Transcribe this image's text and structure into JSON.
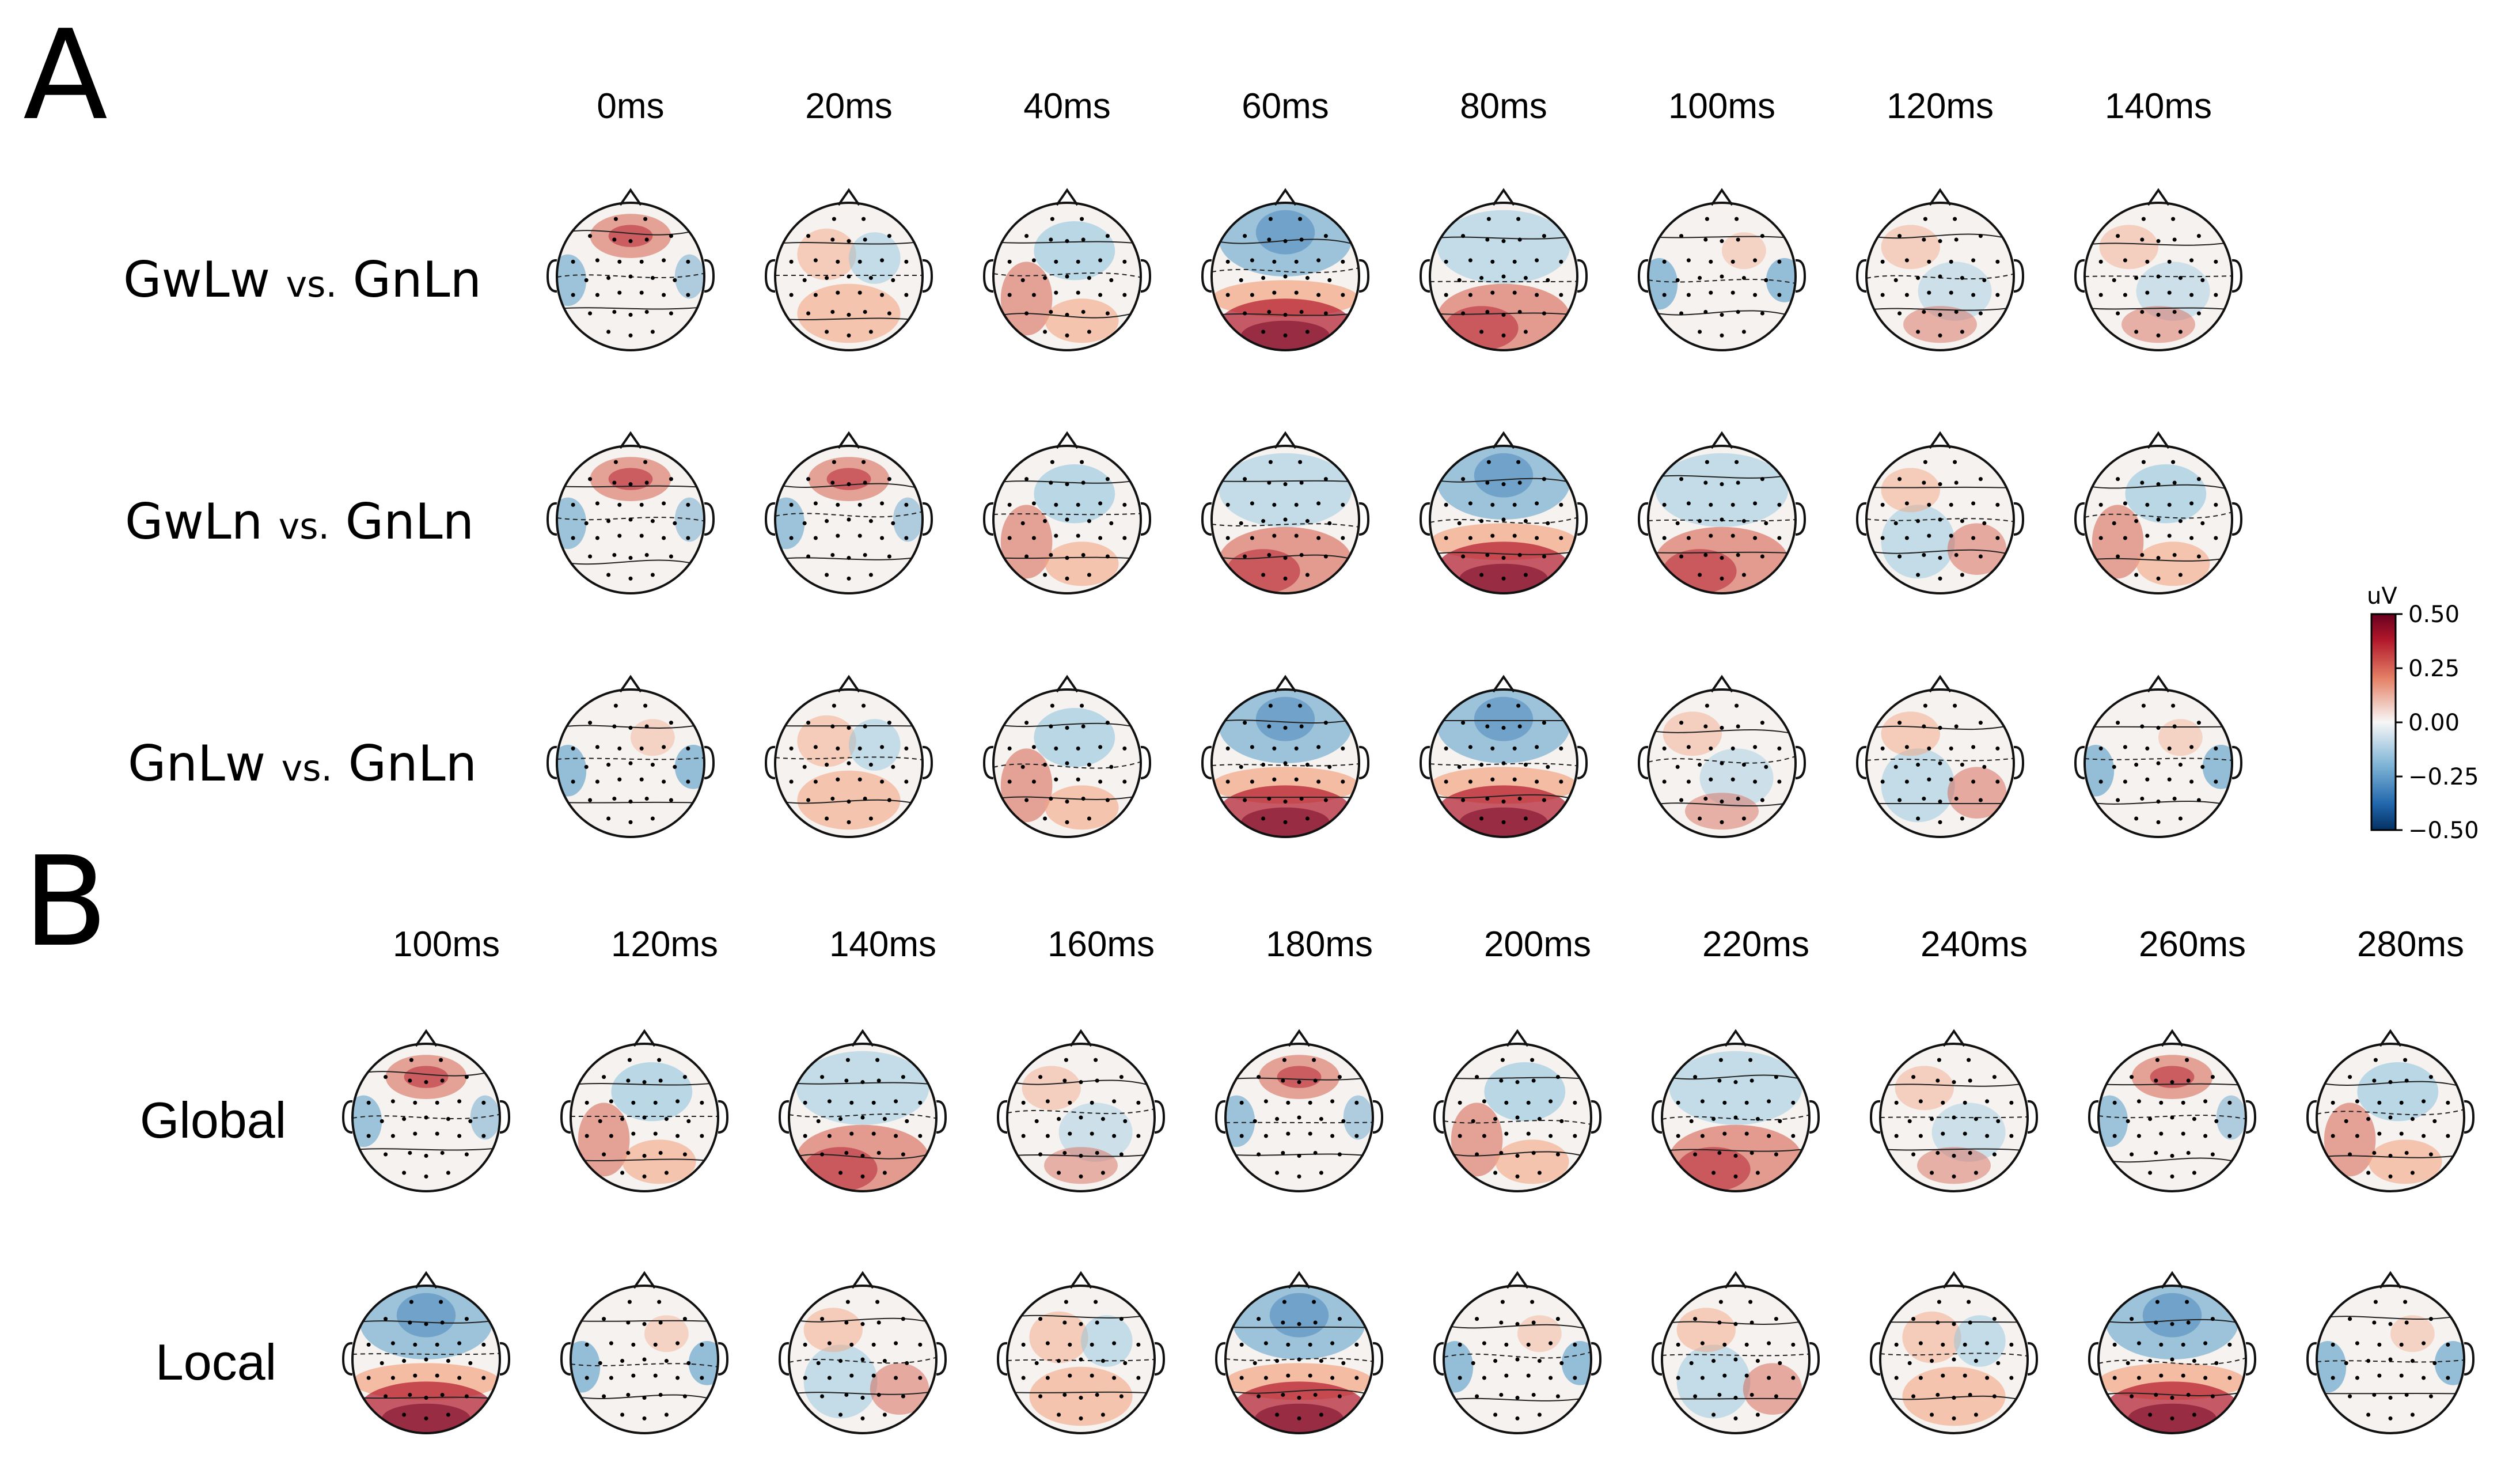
{
  "panelA": {
    "letter": "A",
    "times": [
      "0ms",
      "20ms",
      "40ms",
      "60ms",
      "80ms",
      "100ms",
      "120ms",
      "140ms"
    ],
    "rows": [
      {
        "main": "GwLw",
        "vs": "vs.",
        "ref": "GnLn"
      },
      {
        "main": "GwLn",
        "vs": "vs.",
        "ref": "GnLn"
      },
      {
        "main": "GnLw",
        "vs": "vs.",
        "ref": "GnLn"
      }
    ]
  },
  "panelB": {
    "letter": "B",
    "times": [
      "100ms",
      "120ms",
      "140ms",
      "160ms",
      "180ms",
      "200ms",
      "220ms",
      "240ms",
      "260ms",
      "280ms"
    ],
    "rows": [
      "Global",
      "Local"
    ]
  },
  "colorbar": {
    "unit": "uV",
    "ticks": [
      "0.50",
      "0.25",
      "0.00",
      "−0.25",
      "−0.50"
    ],
    "colors": {
      "positive": "#67001f",
      "neutral": "#f7f7f7",
      "negative": "#053061"
    }
  }
}
